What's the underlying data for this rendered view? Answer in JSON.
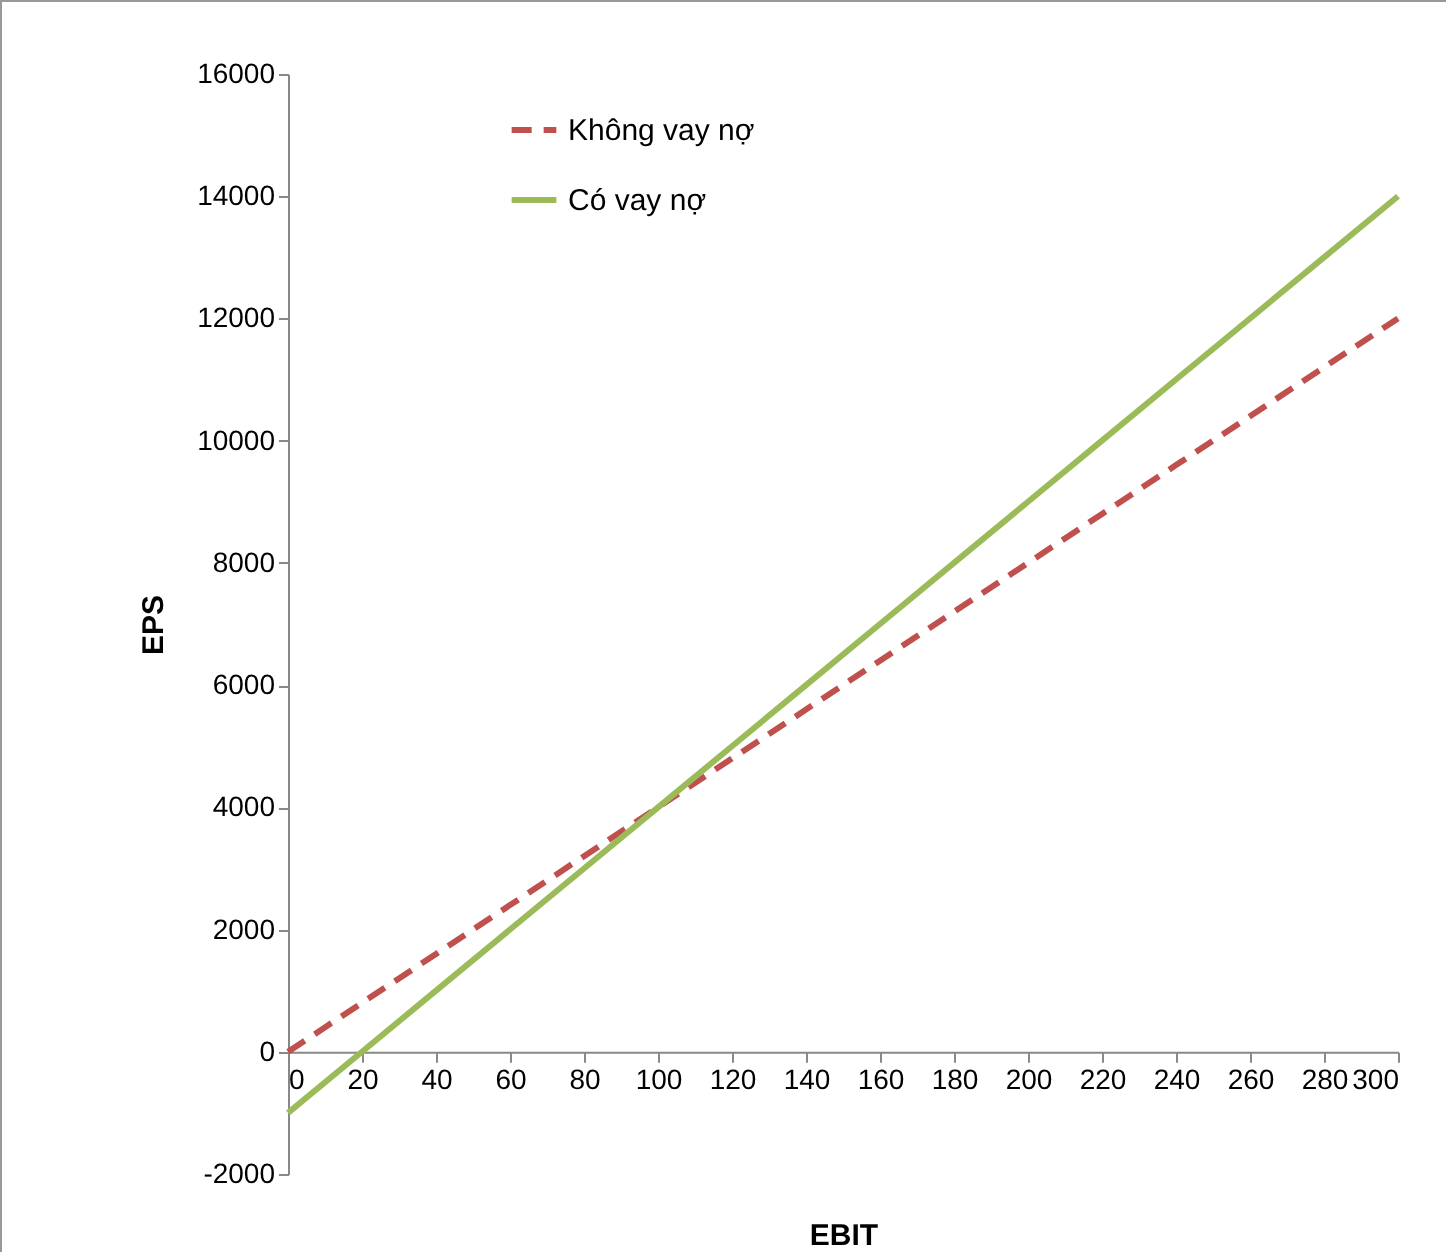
{
  "chart_data": {
    "type": "line",
    "xlabel": "EBIT",
    "ylabel": "EPS",
    "x": [
      0,
      20,
      40,
      60,
      80,
      100,
      120,
      140,
      160,
      180,
      200,
      220,
      240,
      260,
      280,
      300
    ],
    "series": [
      {
        "name": "Không vay nợ",
        "color": "#c0504d",
        "line_style": "dashed",
        "values": [
          0,
          800,
          1600,
          2400,
          3200,
          4000,
          4800,
          5600,
          6400,
          7200,
          8000,
          8800,
          9600,
          10400,
          11200,
          12000
        ]
      },
      {
        "name": "Có vay nợ",
        "color": "#9bbb59",
        "line_style": "solid",
        "values": [
          -1000,
          0,
          1000,
          2000,
          3000,
          4000,
          5000,
          6000,
          7000,
          8000,
          9000,
          10000,
          11000,
          12000,
          13000,
          14000
        ]
      }
    ],
    "xlim": [
      0,
      300
    ],
    "xticks": [
      0,
      20,
      40,
      60,
      80,
      100,
      120,
      140,
      160,
      180,
      200,
      220,
      240,
      260,
      280,
      300
    ],
    "ylim": [
      -2000,
      16000
    ],
    "yticks": [
      -2000,
      0,
      2000,
      4000,
      6000,
      8000,
      10000,
      12000,
      14000,
      16000
    ],
    "grid": false,
    "legend": "top left",
    "marker": "none"
  }
}
